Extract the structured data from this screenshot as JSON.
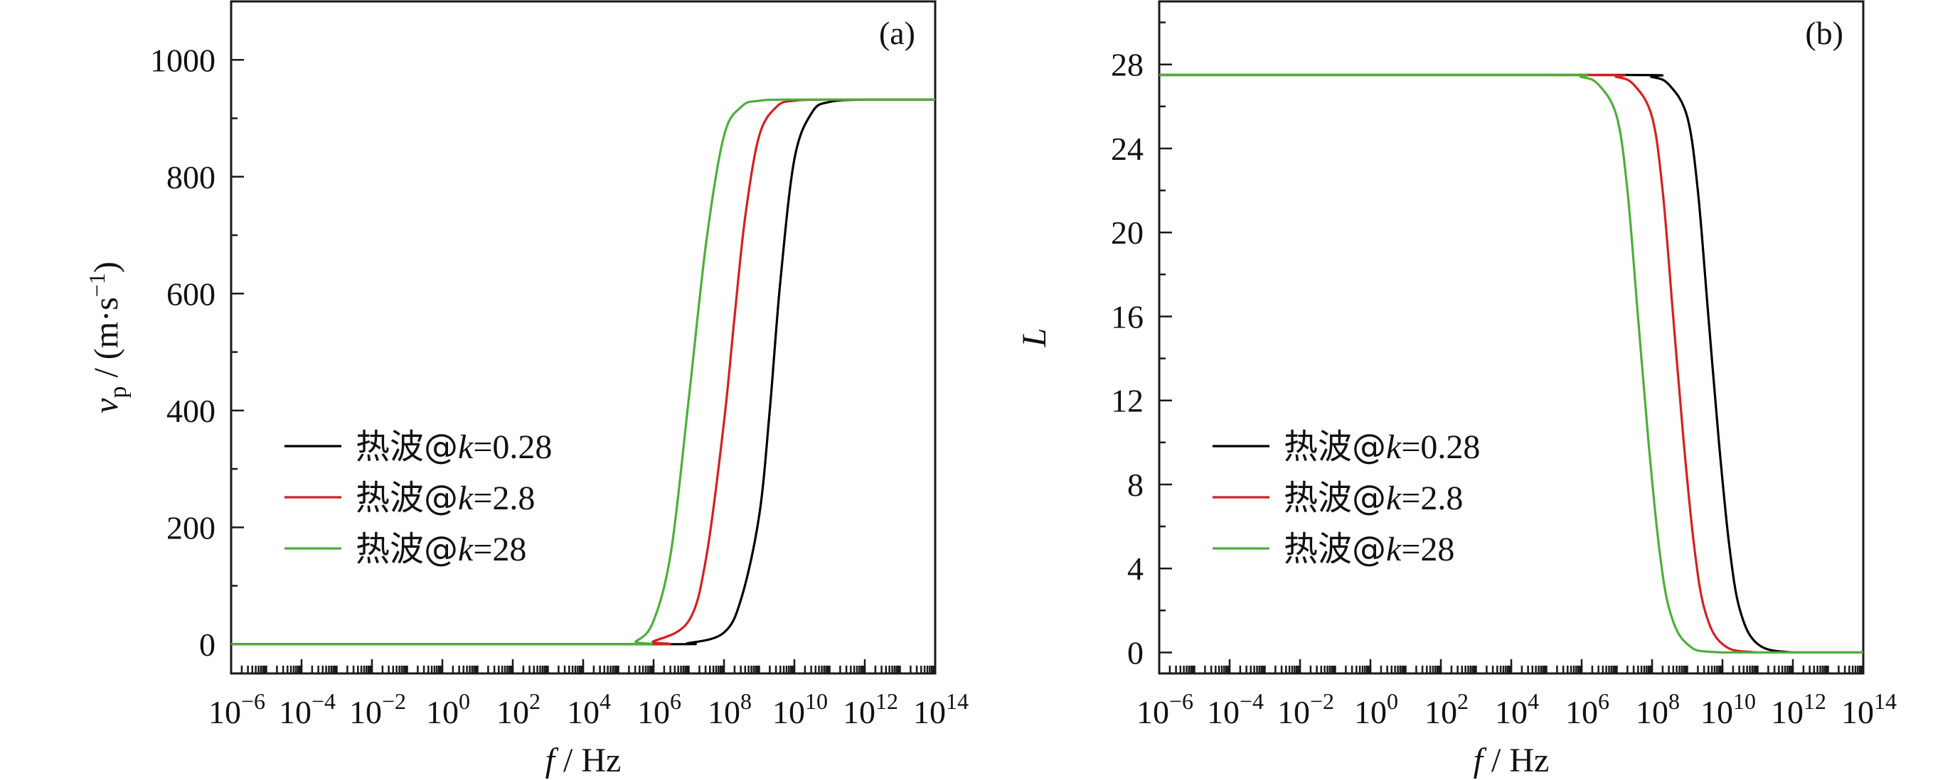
{
  "chart_data": [
    {
      "id": "a",
      "type": "line",
      "panel_label": "(a)",
      "xlabel": "f / Hz",
      "ylabel": "vp / (m·s−1)",
      "xscale": "log",
      "xlim": [
        -6,
        14
      ],
      "ylim": [
        -50,
        1100
      ],
      "xticks": [
        -6,
        -4,
        -2,
        0,
        2,
        4,
        6,
        8,
        10,
        12,
        14
      ],
      "yticks": [
        0,
        200,
        400,
        600,
        800,
        1000
      ],
      "ytick_labels": [
        "0",
        "200",
        "400",
        "600",
        "800",
        "1000"
      ],
      "legend_position": "center-left",
      "series": [
        {
          "name": "热波@k=0.28",
          "color": "#000000",
          "x": [
            -6,
            6,
            7,
            8,
            8.5,
            9,
            9.3,
            9.6,
            10,
            10.5,
            11,
            12,
            14
          ],
          "y": [
            0,
            0,
            2,
            20,
            80,
            220,
            400,
            620,
            830,
            910,
            928,
            932,
            932
          ]
        },
        {
          "name": "热波@k=2.8",
          "color": "#d42020",
          "x": [
            -6,
            5.5,
            6,
            7,
            7.5,
            8,
            8.3,
            8.6,
            9,
            9.5,
            10,
            11,
            14
          ],
          "y": [
            0,
            0,
            5,
            40,
            150,
            380,
            560,
            730,
            870,
            920,
            930,
            932,
            932
          ]
        },
        {
          "name": "热波@k=28",
          "color": "#4caf3a",
          "x": [
            -6,
            5,
            5.5,
            6,
            6.5,
            7,
            7.5,
            8,
            8.5,
            9,
            10,
            14
          ],
          "y": [
            0,
            0,
            5,
            40,
            160,
            420,
            690,
            870,
            920,
            930,
            932,
            932
          ]
        }
      ]
    },
    {
      "id": "b",
      "type": "line",
      "panel_label": "(b)",
      "xlabel": "f / Hz",
      "ylabel": "L",
      "xscale": "log",
      "xlim": [
        -6,
        14
      ],
      "ylim": [
        -1,
        31
      ],
      "xticks": [
        -6,
        -4,
        -2,
        0,
        2,
        4,
        6,
        8,
        10,
        12,
        14
      ],
      "yticks": [
        0,
        4,
        8,
        12,
        16,
        20,
        24,
        28
      ],
      "ytick_labels": [
        "0",
        "4",
        "8",
        "12",
        "16",
        "20",
        "24",
        "28"
      ],
      "legend_position": "center-left",
      "series": [
        {
          "name": "热波@k=0.28",
          "color": "#000000",
          "x": [
            -6,
            7,
            8,
            8.5,
            9,
            9.3,
            9.6,
            9.9,
            10.2,
            10.5,
            11,
            12,
            14
          ],
          "y": [
            27.5,
            27.5,
            27.4,
            27,
            25.5,
            22,
            16,
            10,
            5,
            2,
            0.4,
            0,
            0
          ]
        },
        {
          "name": "热波@k=2.8",
          "color": "#d42020",
          "x": [
            -6,
            6,
            7,
            7.5,
            8,
            8.3,
            8.6,
            8.9,
            9.2,
            9.5,
            10,
            11,
            14
          ],
          "y": [
            27.5,
            27.5,
            27.4,
            27,
            25.5,
            22,
            16,
            10,
            5,
            2,
            0.4,
            0,
            0
          ]
        },
        {
          "name": "热波@k=28",
          "color": "#4caf3a",
          "x": [
            -6,
            5,
            6,
            6.5,
            7,
            7.3,
            7.6,
            7.9,
            8.2,
            8.5,
            9,
            10,
            14
          ],
          "y": [
            27.5,
            27.5,
            27.4,
            27,
            25.5,
            22,
            16,
            10,
            5,
            2,
            0.4,
            0,
            0
          ]
        }
      ]
    }
  ]
}
